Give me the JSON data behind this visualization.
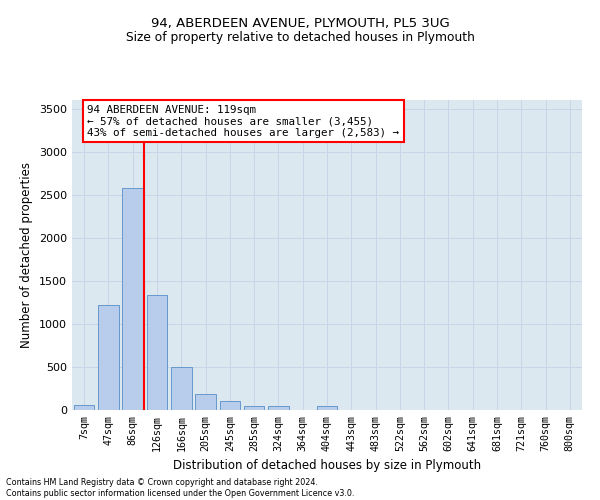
{
  "title_line1": "94, ABERDEEN AVENUE, PLYMOUTH, PL5 3UG",
  "title_line2": "Size of property relative to detached houses in Plymouth",
  "xlabel": "Distribution of detached houses by size in Plymouth",
  "ylabel": "Number of detached properties",
  "bin_labels": [
    "7sqm",
    "47sqm",
    "86sqm",
    "126sqm",
    "166sqm",
    "205sqm",
    "245sqm",
    "285sqm",
    "324sqm",
    "364sqm",
    "404sqm",
    "443sqm",
    "483sqm",
    "522sqm",
    "562sqm",
    "602sqm",
    "641sqm",
    "681sqm",
    "721sqm",
    "760sqm",
    "800sqm"
  ],
  "bar_values": [
    55,
    1220,
    2580,
    1340,
    500,
    190,
    105,
    50,
    45,
    0,
    50,
    0,
    0,
    0,
    0,
    0,
    0,
    0,
    0,
    0,
    0
  ],
  "bar_color": "#b8ccec",
  "bar_edge_color": "#6699cc",
  "vline_color": "red",
  "vline_pos": 2.45,
  "annotation_text": "94 ABERDEEN AVENUE: 119sqm\n← 57% of detached houses are smaller (3,455)\n43% of semi-detached houses are larger (2,583) →",
  "annotation_box_color": "white",
  "annotation_box_edgecolor": "red",
  "ylim": [
    0,
    3600
  ],
  "yticks": [
    0,
    500,
    1000,
    1500,
    2000,
    2500,
    3000,
    3500
  ],
  "grid_color": "#c8d4e8",
  "bg_color": "#dce8f0",
  "footer_line1": "Contains HM Land Registry data © Crown copyright and database right 2024.",
  "footer_line2": "Contains public sector information licensed under the Open Government Licence v3.0."
}
